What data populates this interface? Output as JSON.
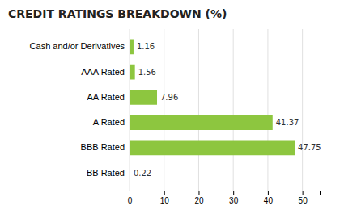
{
  "chart_data": {
    "type": "bar",
    "title": "CREDIT RATINGS BREAKDOWN (%)",
    "categories": [
      "Cash and/or Derivatives",
      "AAA Rated",
      "AA Rated",
      "A Rated",
      "BBB Rated",
      "BB Rated"
    ],
    "values": [
      1.16,
      1.56,
      7.96,
      41.37,
      47.75,
      0.22
    ],
    "color": "#8dc63f",
    "orientation": "horizontal",
    "xlim": [
      0,
      55
    ],
    "xticks": [
      0,
      10,
      20,
      30,
      40,
      50
    ],
    "grid": true,
    "data_labels": true
  }
}
